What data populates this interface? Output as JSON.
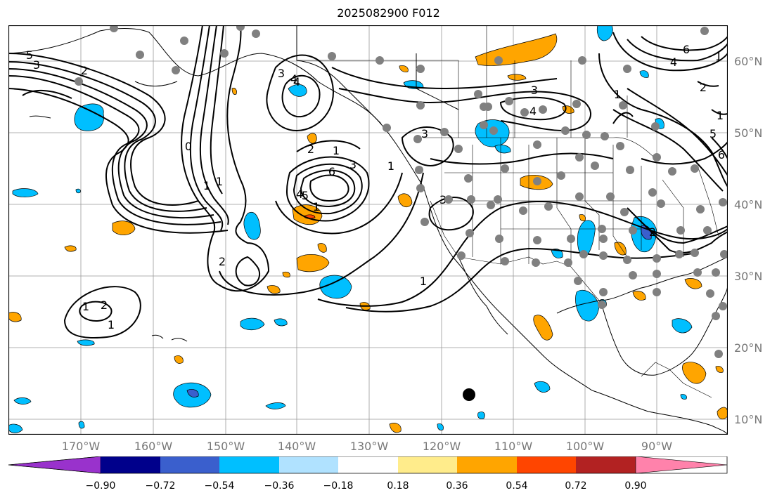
{
  "title": "2025082900 F012",
  "lat_labels": [
    "60°N",
    "50°N",
    "40°N",
    "30°N",
    "20°N",
    "10°N"
  ],
  "lon_labels": [
    "170°W",
    "160°W",
    "150°W",
    "140°W",
    "130°W",
    "120°W",
    "110°W",
    "100°W",
    "90°W"
  ],
  "colorbar": {
    "ticks": [
      "−0.90",
      "−0.72",
      "−0.54",
      "−0.36",
      "−0.18",
      "0.18",
      "0.36",
      "0.54",
      "0.72",
      "0.90"
    ],
    "colors": [
      "#9932cc",
      "#00008b",
      "#3a5fcd",
      "#00bfff",
      "#b0e2ff",
      "#ffffff",
      "#ffec8b",
      "#ffa500",
      "#ff4500",
      "#b22222",
      "#ff82ab"
    ]
  },
  "contour_labels": [
    "5",
    "3",
    "2",
    "4",
    "3",
    "0",
    "1",
    "1",
    "2",
    "2",
    "1",
    "3",
    "4",
    "1",
    "1",
    "6",
    "5",
    "4",
    "1",
    "2",
    "3",
    "3",
    "3",
    "4",
    "1",
    "6",
    "4",
    "1",
    "2",
    "1",
    "5",
    "6",
    "2",
    "1",
    "1"
  ]
}
